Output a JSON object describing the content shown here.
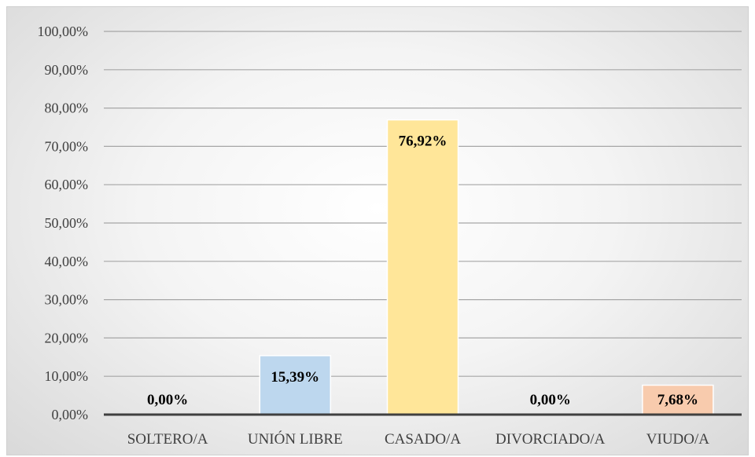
{
  "chart_data": {
    "type": "bar",
    "categories": [
      "SOLTERO/A",
      "UNIÓN LIBRE",
      "CASADO/A",
      "DIVORCIADO/A",
      "VIUDO/A"
    ],
    "values": [
      0.0,
      15.39,
      76.92,
      0.0,
      7.68
    ],
    "data_labels": [
      "0,00%",
      "15,39%",
      "76,92%",
      "0,00%",
      "7,68%"
    ],
    "colors": [
      "#bdd7ee",
      "#bdd7ee",
      "#ffe699",
      "#bdd7ee",
      "#f8cbad"
    ],
    "y_ticks": [
      "0,00%",
      "10,00%",
      "20,00%",
      "30,00%",
      "40,00%",
      "50,00%",
      "60,00%",
      "70,00%",
      "80,00%",
      "90,00%",
      "100,00%"
    ],
    "ylim": [
      0,
      100
    ],
    "ystep": 10,
    "grid": true,
    "legend": "none",
    "title": "",
    "xlabel": "",
    "ylabel": ""
  }
}
